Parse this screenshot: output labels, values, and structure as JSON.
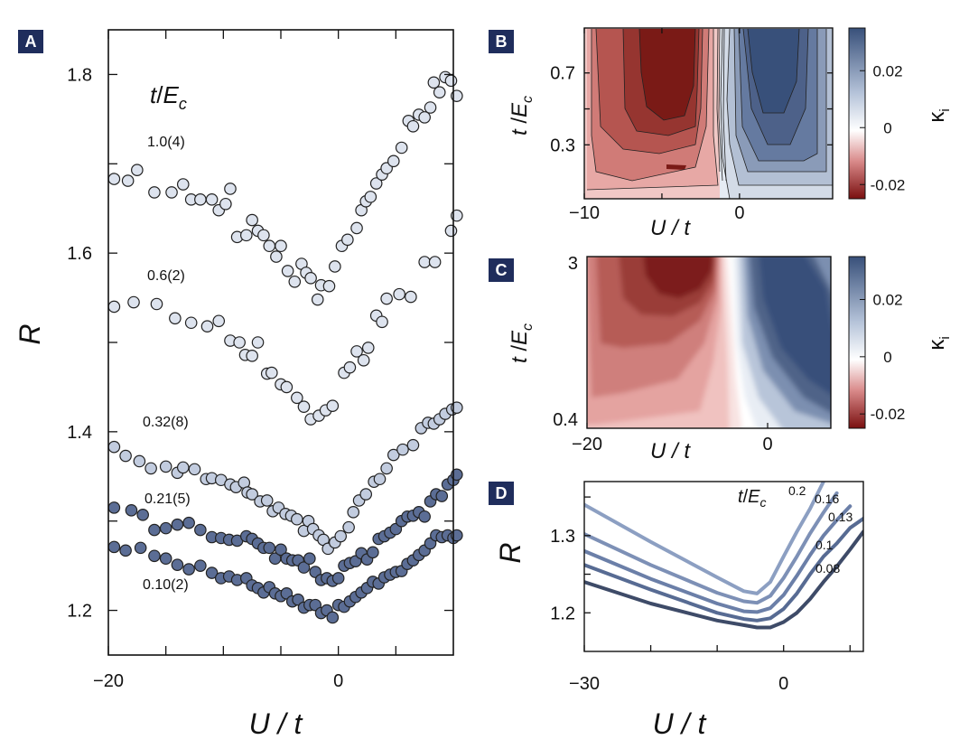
{
  "panels": {
    "A": {
      "letter": "A"
    },
    "B": {
      "letter": "B"
    },
    "C": {
      "letter": "C"
    },
    "D": {
      "letter": "D"
    }
  },
  "colors": {
    "panel_letter_bg": "#1f2d5c",
    "red_dark": "#7a0f0f",
    "red_light": "#f7dedd",
    "blue_dark": "#38507a",
    "blue_light": "#e4eaf3",
    "marker_light": "#dde3ee",
    "marker_mid": "#c2ccdf",
    "marker_dark": "#5b6d95"
  },
  "chart_data": [
    {
      "panel": "A",
      "type": "scatter",
      "xlabel": "U / t",
      "ylabel": "R",
      "xlim": [
        -20,
        10
      ],
      "ylim": [
        1.15,
        1.85
      ],
      "xticks": [
        {
          "v": -20,
          "label": "−20"
        },
        {
          "v": 0,
          "label": "0"
        }
      ],
      "yticks": [
        {
          "v": 1.2,
          "label": "1.2"
        },
        {
          "v": 1.4,
          "label": "1.4"
        },
        {
          "v": 1.6,
          "label": "1.6"
        },
        {
          "v": 1.8,
          "label": "1.8"
        }
      ],
      "legend_title_t": "t",
      "legend_title_E": "E",
      "legend_title_sub": "c",
      "series": [
        {
          "name": "1.0(4)",
          "color": "#dde3ee",
          "x": [
            -19.5,
            -18.3,
            -17.5,
            -16,
            -14.5,
            -13.5,
            -12.8,
            -12,
            -11,
            -10.4,
            -9.8,
            -9.4,
            -8.8,
            -8,
            -7.5,
            -7,
            -6.5,
            -6,
            -5.4,
            -5,
            -4.4,
            -3.8,
            -3.2,
            -2.8,
            -2.4,
            -1.8,
            -1.5,
            -0.8,
            -0.3,
            0.3,
            0.8,
            1.6,
            2,
            2.4,
            2.8,
            3.3,
            3.8,
            4.2,
            4.8,
            5.5,
            6.1,
            6.5,
            7,
            7.5,
            8,
            8.3,
            8.8,
            9.3,
            9.8,
            10.3
          ],
          "y": [
            1.683,
            1.681,
            1.693,
            1.668,
            1.668,
            1.677,
            1.66,
            1.66,
            1.66,
            1.648,
            1.655,
            1.672,
            1.618,
            1.62,
            1.637,
            1.625,
            1.62,
            1.608,
            1.596,
            1.608,
            1.58,
            1.568,
            1.588,
            1.578,
            1.572,
            1.548,
            1.564,
            1.563,
            1.585,
            1.608,
            1.615,
            1.628,
            1.648,
            1.658,
            1.663,
            1.678,
            1.688,
            1.695,
            1.703,
            1.718,
            1.748,
            1.742,
            1.755,
            1.752,
            1.763,
            1.791,
            1.78,
            1.797,
            1.793,
            1.776
          ]
        },
        {
          "name": "0.6(2)",
          "color": "#dde3ee",
          "x": [
            -19.5,
            -17.8,
            -15.8,
            -14.2,
            -12.8,
            -11.4,
            -10.4,
            -9.4,
            -8.6,
            -8.1,
            -7.5,
            -7,
            -6.2,
            -5.8,
            -5,
            -4.5,
            -3.6,
            -3,
            -2.4,
            -1.7,
            -1.1,
            -0.5,
            0.5,
            1,
            1.6,
            2.2,
            2.6,
            3.3,
            3.8,
            4.2,
            5.3,
            6.3,
            7.5,
            8.4,
            9.8,
            10.3
          ],
          "y": [
            1.54,
            1.545,
            1.543,
            1.527,
            1.522,
            1.518,
            1.524,
            1.502,
            1.5,
            1.486,
            1.485,
            1.5,
            1.465,
            1.466,
            1.453,
            1.45,
            1.438,
            1.428,
            1.414,
            1.418,
            1.424,
            1.429,
            1.466,
            1.472,
            1.49,
            1.48,
            1.494,
            1.53,
            1.523,
            1.549,
            1.554,
            1.551,
            1.59,
            1.59,
            1.625,
            1.642
          ]
        },
        {
          "name": "0.32(8)",
          "color": "#c2ccdf",
          "x": [
            -19.5,
            -18.5,
            -17.3,
            -16.3,
            -15,
            -14,
            -13.5,
            -12.5,
            -11.5,
            -11,
            -10.2,
            -9.4,
            -8.9,
            -8.2,
            -7.9,
            -7.5,
            -6.8,
            -6.2,
            -5.7,
            -5.2,
            -4.6,
            -4.1,
            -3.6,
            -3,
            -2.6,
            -2.2,
            -1.7,
            -1.3,
            -0.9,
            -0.3,
            0.2,
            0.9,
            1.3,
            1.8,
            2.4,
            3.1,
            3.6,
            4.2,
            4.8,
            5.6,
            6.5,
            7.2,
            7.8,
            8.3,
            8.8,
            9.3,
            9.9,
            10.3
          ],
          "y": [
            1.383,
            1.373,
            1.367,
            1.359,
            1.361,
            1.354,
            1.36,
            1.358,
            1.347,
            1.348,
            1.346,
            1.341,
            1.338,
            1.343,
            1.332,
            1.33,
            1.322,
            1.323,
            1.311,
            1.315,
            1.308,
            1.306,
            1.302,
            1.289,
            1.3,
            1.291,
            1.284,
            1.279,
            1.269,
            1.276,
            1.283,
            1.293,
            1.31,
            1.323,
            1.33,
            1.344,
            1.347,
            1.359,
            1.374,
            1.38,
            1.385,
            1.404,
            1.41,
            1.409,
            1.414,
            1.42,
            1.425,
            1.427
          ]
        },
        {
          "name": "0.21(5)",
          "color": "#5b6d95",
          "x": [
            -19.5,
            -18,
            -17,
            -16,
            -15,
            -14,
            -13,
            -12,
            -11,
            -10.2,
            -9.5,
            -8.8,
            -8,
            -7.5,
            -7,
            -6.5,
            -6,
            -5.5,
            -5,
            -4.5,
            -4,
            -3.5,
            -3,
            -2.5,
            -2,
            -1.5,
            -1,
            -0.5,
            0,
            0.5,
            1,
            1.5,
            2,
            2.5,
            3,
            3.5,
            4,
            4.5,
            5,
            5.5,
            6,
            6.5,
            7,
            7.5,
            8,
            8.5,
            9,
            9.5,
            10,
            10.3
          ],
          "y": [
            1.315,
            1.312,
            1.307,
            1.29,
            1.292,
            1.296,
            1.298,
            1.29,
            1.282,
            1.281,
            1.279,
            1.278,
            1.283,
            1.28,
            1.275,
            1.27,
            1.27,
            1.258,
            1.268,
            1.258,
            1.256,
            1.256,
            1.248,
            1.258,
            1.243,
            1.234,
            1.236,
            1.233,
            1.236,
            1.25,
            1.253,
            1.255,
            1.264,
            1.257,
            1.265,
            1.28,
            1.283,
            1.287,
            1.291,
            1.3,
            1.305,
            1.306,
            1.31,
            1.305,
            1.322,
            1.33,
            1.328,
            1.341,
            1.346,
            1.352
          ]
        },
        {
          "name": "0.10(2)",
          "color": "#5b6d95",
          "x": [
            -19.5,
            -18.5,
            -17.2,
            -16,
            -15,
            -14,
            -13,
            -12,
            -11,
            -10.2,
            -9.5,
            -8.8,
            -8,
            -7.5,
            -7,
            -6.5,
            -6,
            -5.5,
            -5,
            -4.5,
            -4,
            -3.5,
            -3,
            -2.5,
            -2,
            -1.5,
            -1,
            -0.5,
            0,
            0.5,
            1,
            1.5,
            2,
            2.5,
            3,
            3.5,
            4,
            4.5,
            5,
            5.5,
            6,
            6.5,
            7,
            7.5,
            8,
            8.5,
            9,
            9.5,
            10,
            10.3
          ],
          "y": [
            1.271,
            1.267,
            1.27,
            1.261,
            1.258,
            1.251,
            1.246,
            1.25,
            1.242,
            1.236,
            1.238,
            1.234,
            1.236,
            1.228,
            1.225,
            1.22,
            1.226,
            1.219,
            1.216,
            1.219,
            1.21,
            1.212,
            1.203,
            1.206,
            1.206,
            1.197,
            1.2,
            1.192,
            1.206,
            1.204,
            1.21,
            1.215,
            1.22,
            1.225,
            1.232,
            1.23,
            1.237,
            1.24,
            1.243,
            1.244,
            1.252,
            1.256,
            1.262,
            1.267,
            1.275,
            1.284,
            1.282,
            1.284,
            1.281,
            1.284
          ]
        }
      ]
    },
    {
      "panel": "B",
      "type": "heatmap",
      "style": "contour",
      "xlabel": "U / t",
      "ylabel_t": "t",
      "ylabel_E": "E",
      "ylabel_sub": "c",
      "xlim": [
        -10,
        6
      ],
      "ylim": [
        0,
        0.95
      ],
      "xticks": [
        {
          "v": -10,
          "label": "−10"
        },
        {
          "v": 0,
          "label": "0"
        }
      ],
      "yticks": [
        {
          "v": 0.3,
          "label": "0.3"
        },
        {
          "v": 0.7,
          "label": "0.7"
        }
      ],
      "zero_crossing_x": -2.5,
      "colorbar": {
        "label": "κ",
        "label_sub": "i",
        "range": [
          -0.025,
          0.035
        ],
        "ticks": [
          {
            "v": -0.02,
            "label": "-0.02"
          },
          {
            "v": 0,
            "label": "0"
          },
          {
            "v": 0.02,
            "label": "0.02"
          }
        ]
      }
    },
    {
      "panel": "C",
      "type": "heatmap",
      "style": "smooth",
      "xlabel": "U / t",
      "ylabel_t": "t",
      "ylabel_E": "E",
      "ylabel_sub": "c",
      "xlim": [
        -20,
        7
      ],
      "ylim": [
        0.4,
        3
      ],
      "xticks": [
        {
          "v": -20,
          "label": "−20"
        },
        {
          "v": 0,
          "label": "0"
        }
      ],
      "yticks": [
        {
          "v": 0.4,
          "label": "0.4"
        },
        {
          "v": 3,
          "label": "3"
        }
      ],
      "colorbar": {
        "label": "κ",
        "label_sub": "i",
        "range": [
          -0.025,
          0.035
        ],
        "ticks": [
          {
            "v": -0.02,
            "label": "-0.02"
          },
          {
            "v": 0,
            "label": "0"
          },
          {
            "v": 0.02,
            "label": "0.02"
          }
        ]
      }
    },
    {
      "panel": "D",
      "type": "line",
      "xlabel": "U / t",
      "ylabel": "R",
      "xlim": [
        -30,
        12
      ],
      "ylim": [
        1.15,
        1.37
      ],
      "xticks": [
        {
          "v": -30,
          "label": "−30"
        },
        {
          "v": 0,
          "label": "0"
        }
      ],
      "yticks": [
        {
          "v": 1.2,
          "label": "1.2"
        },
        {
          "v": 1.3,
          "label": "1.3"
        }
      ],
      "legend_title_t": "t",
      "legend_title_E": "E",
      "legend_title_sub": "c",
      "series": [
        {
          "name": "0.2",
          "color": "#8c9fc2",
          "x": [
            -30,
            -20,
            -10,
            -6,
            -4,
            -2,
            0,
            2,
            4,
            6
          ],
          "y": [
            1.34,
            1.292,
            1.246,
            1.228,
            1.225,
            1.24,
            1.273,
            1.305,
            1.335,
            1.37
          ]
        },
        {
          "name": "0.16",
          "color": "#7d90b6",
          "x": [
            -30,
            -20,
            -10,
            -6,
            -4,
            -2,
            0,
            2,
            4,
            6,
            8
          ],
          "y": [
            1.302,
            1.262,
            1.226,
            1.215,
            1.213,
            1.222,
            1.245,
            1.273,
            1.303,
            1.33,
            1.355
          ]
        },
        {
          "name": "0.13",
          "color": "#6b7fa8",
          "x": [
            -30,
            -20,
            -10,
            -6,
            -4,
            -2,
            0,
            2,
            4,
            6,
            8,
            10
          ],
          "y": [
            1.28,
            1.244,
            1.212,
            1.202,
            1.201,
            1.206,
            1.223,
            1.248,
            1.275,
            1.3,
            1.32,
            1.338
          ]
        },
        {
          "name": "0.1",
          "color": "#576b93",
          "x": [
            -30,
            -20,
            -10,
            -6,
            -4,
            -2,
            0,
            2,
            4,
            6,
            8,
            10,
            12
          ],
          "y": [
            1.262,
            1.23,
            1.2,
            1.192,
            1.19,
            1.193,
            1.205,
            1.225,
            1.25,
            1.273,
            1.29,
            1.31,
            1.322
          ]
        },
        {
          "name": "0.08",
          "color": "#3e4b68",
          "x": [
            -30,
            -20,
            -10,
            -6,
            -4,
            -2,
            0,
            2,
            4,
            6,
            8,
            10,
            12
          ],
          "y": [
            1.24,
            1.212,
            1.19,
            1.184,
            1.181,
            1.181,
            1.188,
            1.2,
            1.218,
            1.24,
            1.26,
            1.282,
            1.305
          ]
        }
      ]
    }
  ]
}
